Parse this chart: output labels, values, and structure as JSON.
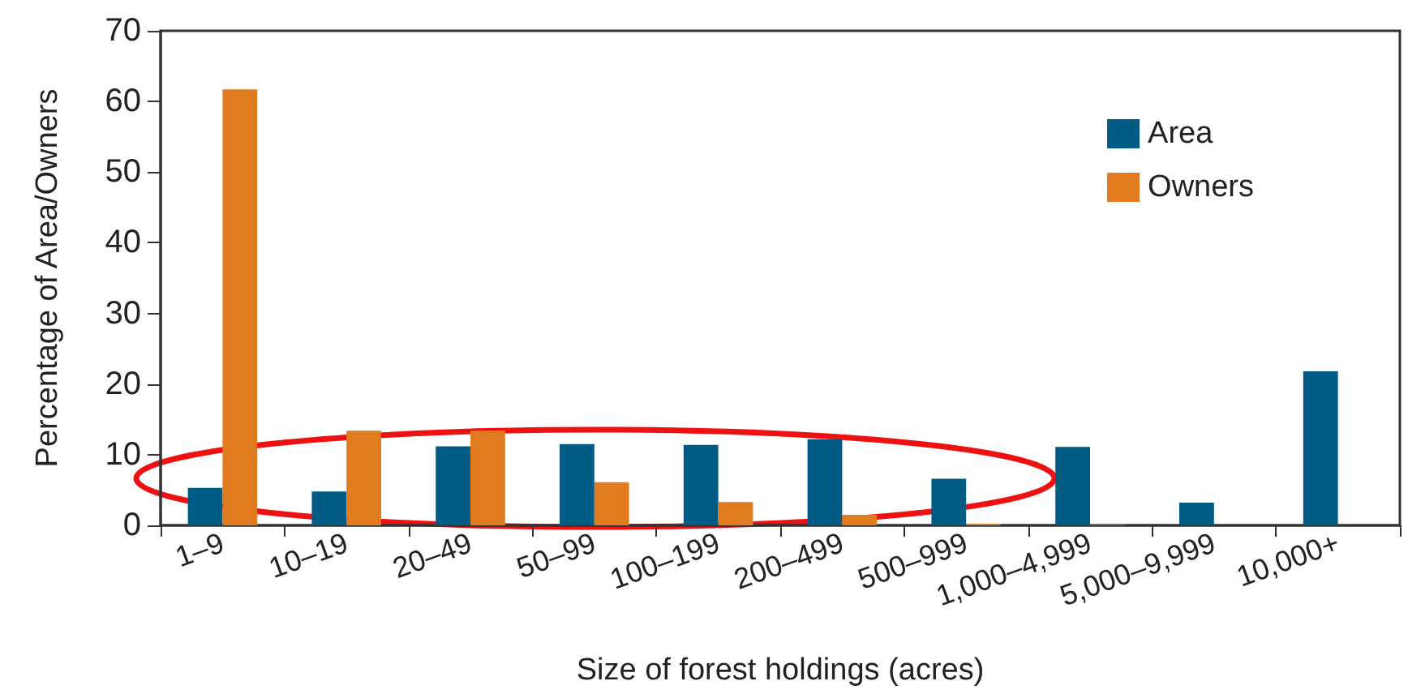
{
  "chart_data": {
    "type": "bar",
    "xlabel": "Size of forest holdings (acres)",
    "ylabel": "Percentage of Area/Owners",
    "categories": [
      "1–9",
      "10–19",
      "20–49",
      "50–99",
      "100–199",
      "200–499",
      "500–999",
      "1,000–4,999",
      "5,000–9,999",
      "10,000+"
    ],
    "series": [
      {
        "name": "Area",
        "color": "#005b85",
        "values": [
          5.3,
          4.8,
          11.2,
          11.5,
          11.4,
          12.2,
          6.6,
          11.1,
          3.2,
          21.8
        ]
      },
      {
        "name": "Owners",
        "color": "#e07b1f",
        "values": [
          61.7,
          13.4,
          13.4,
          6.1,
          3.3,
          1.5,
          0.2,
          0.1,
          0,
          0
        ]
      }
    ],
    "ylim": [
      0,
      70
    ],
    "yticks": [
      0,
      10,
      20,
      30,
      40,
      50,
      60,
      70
    ],
    "grid": false,
    "legend": "top right"
  }
}
